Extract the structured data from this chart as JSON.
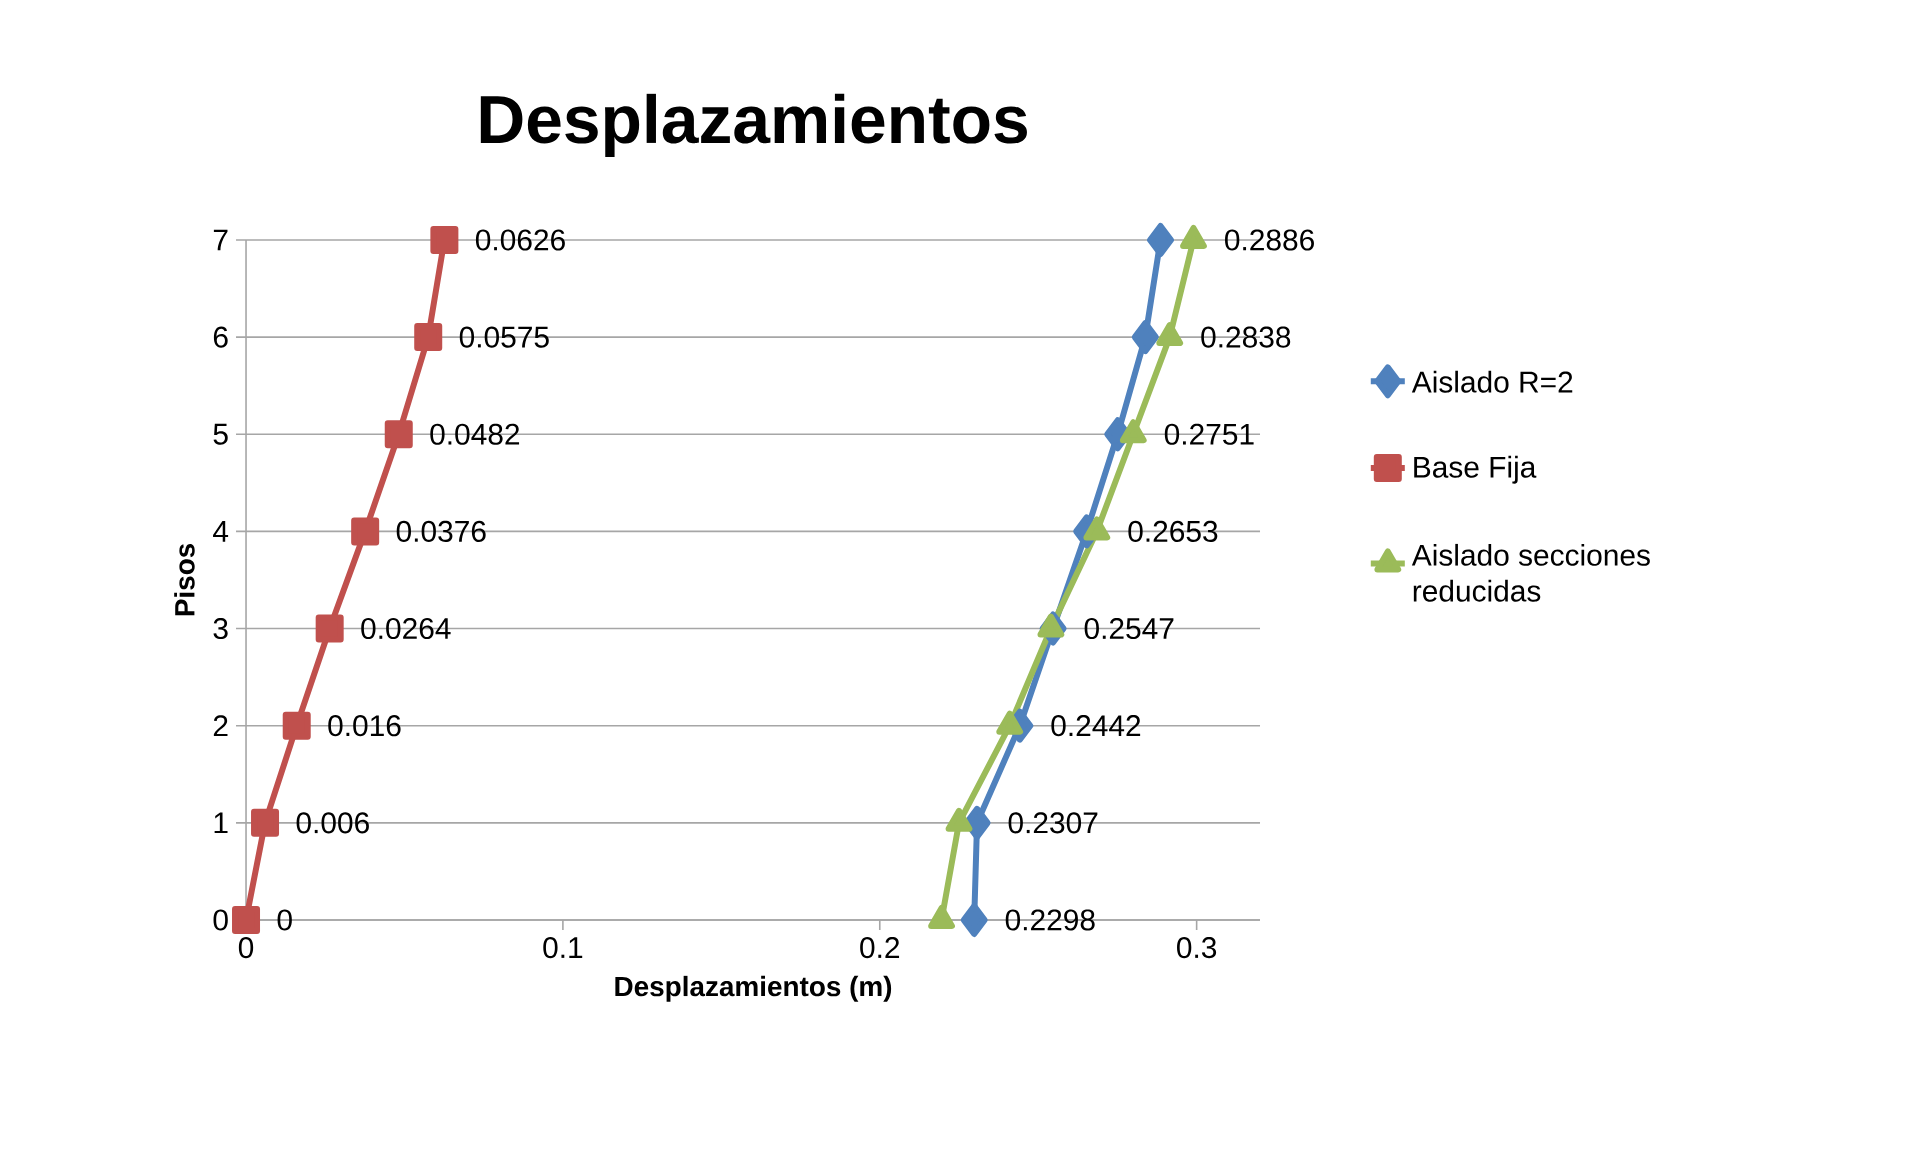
{
  "chart_data": {
    "type": "line",
    "title": "Desplazamientos",
    "xlabel": "Desplazamientos (m)",
    "ylabel": "Pisos",
    "xlim": [
      0,
      0.32
    ],
    "xticks": [
      0,
      0.1,
      0.2,
      0.3
    ],
    "ylim": [
      0,
      7
    ],
    "yticks": [
      0,
      1,
      2,
      3,
      4,
      5,
      6,
      7
    ],
    "grid": "y",
    "legend": "right",
    "series": [
      {
        "name": "Aislado R=2",
        "color": "#4f81bd",
        "marker": "diamond",
        "x": [
          0.2298,
          0.2307,
          0.2442,
          0.2547,
          0.2653,
          0.2751,
          0.2838,
          0.2886
        ],
        "values": [
          0,
          1,
          2,
          3,
          4,
          5,
          6,
          7
        ]
      },
      {
        "name": "Base Fija",
        "color": "#c0504d",
        "marker": "square",
        "x": [
          0,
          0.006,
          0.016,
          0.0264,
          0.0376,
          0.0482,
          0.0575,
          0.0626
        ],
        "values": [
          0,
          1,
          2,
          3,
          4,
          5,
          6,
          7
        ]
      },
      {
        "name": "Aislado secciones reducidas",
        "color": "#9bbb59",
        "marker": "triangle",
        "x": [
          0.2195,
          0.225,
          0.241,
          0.254,
          0.2685,
          0.28,
          0.2915,
          0.299
        ],
        "values": [
          0,
          1,
          2,
          3,
          4,
          5,
          6,
          7
        ]
      }
    ],
    "annotations": [
      {
        "text": "0.2298",
        "x": 0.2298,
        "y": 0
      },
      {
        "text": "0.2307",
        "x": 0.2307,
        "y": 1
      },
      {
        "text": "0.2442",
        "x": 0.2442,
        "y": 2
      },
      {
        "text": "0.2547",
        "x": 0.2547,
        "y": 3
      },
      {
        "text": "0.2653",
        "x": 0.2653,
        "y": 4
      },
      {
        "text": "0.2751",
        "x": 0.2751,
        "y": 5
      },
      {
        "text": "0.2838",
        "x": 0.2838,
        "y": 6
      },
      {
        "text": "0.2886",
        "x": 0.2886,
        "y": 7
      },
      {
        "text": "0",
        "x": 0,
        "y": 0
      },
      {
        "text": "0.006",
        "x": 0.006,
        "y": 1
      },
      {
        "text": "0.016",
        "x": 0.016,
        "y": 2
      },
      {
        "text": "0.0264",
        "x": 0.0264,
        "y": 3
      },
      {
        "text": "0.0376",
        "x": 0.0376,
        "y": 4
      },
      {
        "text": "0.0482",
        "x": 0.0482,
        "y": 5
      },
      {
        "text": "0.0575",
        "x": 0.0575,
        "y": 6
      },
      {
        "text": "0.0626",
        "x": 0.0626,
        "y": 7
      }
    ]
  }
}
